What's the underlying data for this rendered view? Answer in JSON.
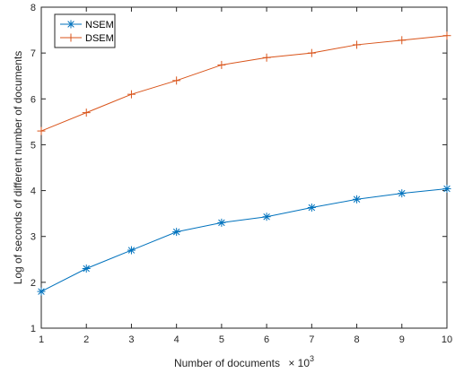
{
  "chart_data": {
    "type": "line",
    "x": [
      1,
      2,
      3,
      4,
      5,
      6,
      7,
      8,
      9,
      10
    ],
    "series": [
      {
        "name": "NSEM",
        "values": [
          1.8,
          2.3,
          2.7,
          3.1,
          3.3,
          3.43,
          3.63,
          3.81,
          3.94,
          4.04
        ],
        "color": "#0072BD",
        "marker": "asterisk"
      },
      {
        "name": "DSEM",
        "values": [
          5.3,
          5.7,
          6.1,
          6.4,
          6.74,
          6.9,
          7.0,
          7.18,
          7.28,
          7.38
        ],
        "color": "#D95319",
        "marker": "plus"
      }
    ],
    "xlim": [
      1,
      10
    ],
    "ylim": [
      1,
      8
    ],
    "xticks": [
      "1",
      "2",
      "3",
      "4",
      "5",
      "6",
      "7",
      "8",
      "9",
      "10"
    ],
    "yticks": [
      "1",
      "2",
      "3",
      "4",
      "5",
      "6",
      "7",
      "8"
    ],
    "xlabel": "Number of documents",
    "xlabel_scale": "× 10",
    "xlabel_exponent": "3",
    "ylabel": "Log of seconds of different number of documents",
    "legend_position": "top-left",
    "grid": false
  }
}
